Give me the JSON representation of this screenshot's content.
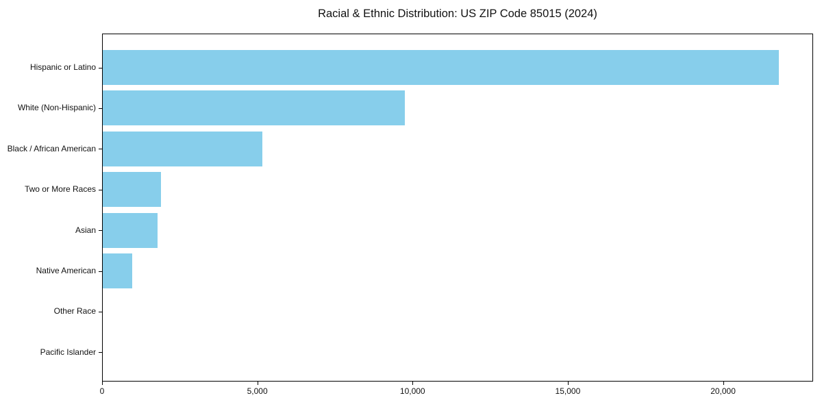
{
  "title": "Racial & Ethnic Distribution: US ZIP Code 85015 (2024)",
  "chart_data": {
    "type": "bar",
    "orientation": "horizontal",
    "title": "Racial & Ethnic Distribution: US ZIP Code 85015 (2024)",
    "categories": [
      "Hispanic or Latino",
      "White (Non-Hispanic)",
      "Black / African American",
      "Two or More Races",
      "Asian",
      "Native American",
      "Other Race",
      "Pacific Islander"
    ],
    "values": [
      21800,
      9750,
      5170,
      1890,
      1780,
      960,
      30,
      10
    ],
    "xlabel": "",
    "ylabel": "",
    "xlim": [
      0,
      22900
    ],
    "xticks": [
      0,
      5000,
      10000,
      15000,
      20000
    ],
    "xtick_labels": [
      "0",
      "5,000",
      "10,000",
      "15,000",
      "20,000"
    ],
    "bar_color": "#87CEEB",
    "text_color": "#111111",
    "spine_color": "#000000",
    "grid": false,
    "legend": false
  }
}
